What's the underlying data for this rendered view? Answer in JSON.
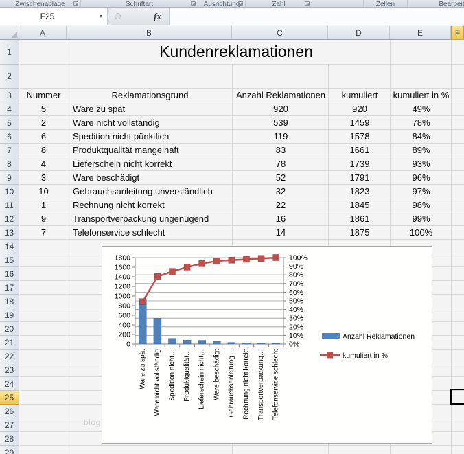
{
  "ribbon": {
    "groups": [
      {
        "label": "Zwischenablage",
        "launcher": true
      },
      {
        "label": "Schriftart",
        "launcher": true
      },
      {
        "label": "Ausrichtung",
        "launcher": true
      },
      {
        "label": "Zahl",
        "launcher": true
      },
      {
        "label": "",
        "launcher": false
      },
      {
        "label": "Zellen",
        "launcher": false
      },
      {
        "label": "Bearbeiten",
        "launcher": false
      }
    ]
  },
  "formula_bar": {
    "name_box": "F25",
    "fx_label": "fx",
    "formula_value": ""
  },
  "sheet": {
    "column_headers": [
      "A",
      "B",
      "C",
      "D",
      "E",
      "F"
    ],
    "selected_column": "F",
    "row_numbers": [
      "1",
      "2",
      "3",
      "4",
      "5",
      "6",
      "7",
      "8",
      "9",
      "10",
      "11",
      "12",
      "13",
      "14",
      "15",
      "16",
      "17",
      "18",
      "19",
      "20",
      "21",
      "22",
      "23",
      "24",
      "25",
      "26",
      "27",
      "28",
      "29"
    ],
    "selected_row": "25",
    "selected_cell": "F25",
    "title": "Kundenreklamationen",
    "watermark": "blog",
    "table": {
      "headers": [
        "Nummer",
        "Reklamationsgrund",
        "Anzahl Reklamationen",
        "kumuliert",
        "kumuliert in %"
      ],
      "rows": [
        {
          "nr": "5",
          "grund": "Ware zu spät",
          "anzahl": "920",
          "kum": "920",
          "pct": "49%"
        },
        {
          "nr": "2",
          "grund": "Ware nicht vollständig",
          "anzahl": "539",
          "kum": "1459",
          "pct": "78%"
        },
        {
          "nr": "6",
          "grund": "Spedition nicht pünktlich",
          "anzahl": "119",
          "kum": "1578",
          "pct": "84%"
        },
        {
          "nr": "8",
          "grund": "Produktqualität mangelhaft",
          "anzahl": "83",
          "kum": "1661",
          "pct": "89%"
        },
        {
          "nr": "4",
          "grund": "Lieferschein nicht korrekt",
          "anzahl": "78",
          "kum": "1739",
          "pct": "93%"
        },
        {
          "nr": "3",
          "grund": "Ware beschädigt",
          "anzahl": "52",
          "kum": "1791",
          "pct": "96%"
        },
        {
          "nr": "10",
          "grund": "Gebrauchsanleitung unverständlich",
          "anzahl": "32",
          "kum": "1823",
          "pct": "97%"
        },
        {
          "nr": "1",
          "grund": "Rechnung nicht korrekt",
          "anzahl": "22",
          "kum": "1845",
          "pct": "98%"
        },
        {
          "nr": "9",
          "grund": "Transportverpackung ungenügend",
          "anzahl": "16",
          "kum": "1861",
          "pct": "99%"
        },
        {
          "nr": "7",
          "grund": "Telefonservice schlecht",
          "anzahl": "14",
          "kum": "1875",
          "pct": "100%"
        }
      ]
    }
  },
  "chart_data": {
    "type": "bar",
    "subtype": "pareto-combo-bar-line",
    "x_labels": [
      "Ware zu spät",
      "Ware nicht vollständig",
      "Spedition nicht…",
      "Produktqualität…",
      "Lieferschein nicht…",
      "Ware beschädigt",
      "Gebrauchsanleitung…",
      "Rechnung nicht korrekt",
      "Transportverpackung…",
      "Telefonservice schlecht"
    ],
    "series": [
      {
        "name": "Anzahl Reklamationen",
        "type": "bar",
        "color": "#4F81BD",
        "values": [
          920,
          539,
          119,
          83,
          78,
          52,
          32,
          22,
          16,
          14
        ]
      },
      {
        "name": "kumuliert in %",
        "type": "line",
        "color": "#C0504D",
        "values_pct": [
          49,
          78,
          84,
          89,
          93,
          96,
          97,
          98,
          99,
          100
        ]
      }
    ],
    "left_axis": {
      "min": 0,
      "max": 1800,
      "step": 200,
      "ticks": [
        "0",
        "200",
        "400",
        "600",
        "800",
        "1000",
        "1200",
        "1400",
        "1600",
        "1800"
      ]
    },
    "right_axis": {
      "min": "0%",
      "max": "100%",
      "step": "10%",
      "ticks": [
        "0%",
        "10%",
        "20%",
        "30%",
        "40%",
        "50%",
        "60%",
        "70%",
        "80%",
        "90%",
        "100%"
      ]
    },
    "grid": true,
    "legend_position": "right",
    "grid_color": "#9b9b9b",
    "axis_color": "#808080",
    "title": ""
  }
}
